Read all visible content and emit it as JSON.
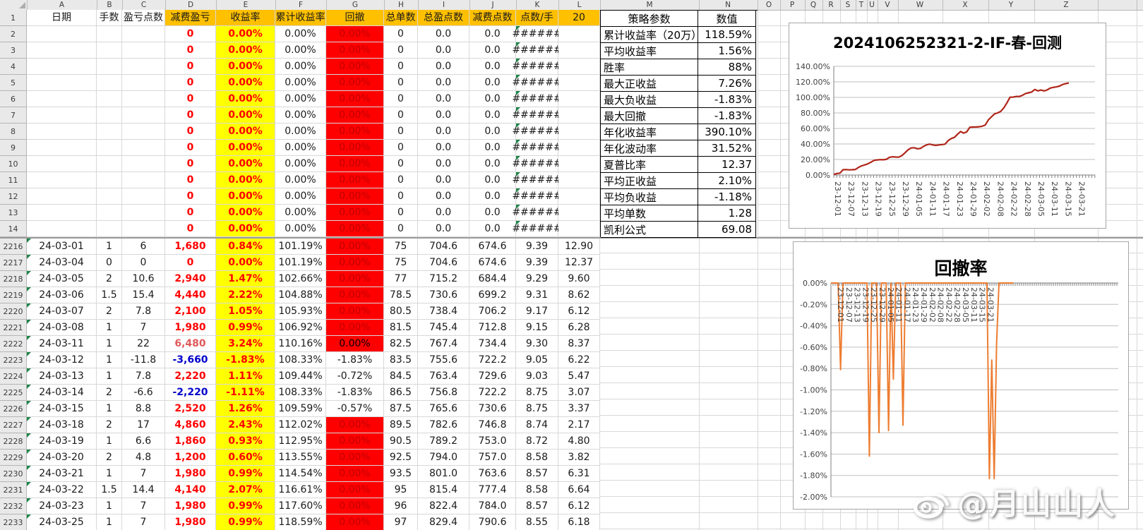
{
  "sheet": {
    "col_letters": [
      "A",
      "B",
      "C",
      "D",
      "E",
      "F",
      "G",
      "H",
      "I",
      "J",
      "K",
      "L",
      "M",
      "N",
      "O",
      "P",
      "Q",
      "R",
      "S",
      "T",
      "U",
      "V",
      "W",
      "X",
      "Y",
      "Z"
    ],
    "row_numbers_top": [
      1,
      2,
      3,
      4,
      5,
      6,
      7,
      8,
      9,
      10,
      11,
      12,
      13,
      14
    ],
    "row_numbers_bottom": [
      2216,
      2217,
      2218,
      2219,
      2220,
      2221,
      2222,
      2223,
      2224,
      2225,
      2226,
      2227,
      2228,
      2229,
      2230,
      2231,
      2232,
      2233
    ]
  },
  "table": {
    "header_row": {
      "date": "日期",
      "lots": "手数",
      "pts": "盈亏点数",
      "pnl": "减费盈亏",
      "ret": "收益率",
      "cum": "累计收益率",
      "dd": "回撤",
      "orders": "总单数",
      "winpts": "总盈点数",
      "feepts": "减费点数",
      "ppl": "点数/手",
      "c20": "20"
    },
    "top_row_template": {
      "pnl": "0",
      "ret": "0.00%",
      "cum": "0.00%",
      "dd": "0.00%",
      "orders": "0",
      "winpts": "0.0",
      "feepts": "0.0",
      "ppl": "######"
    },
    "bottom_rows": [
      {
        "row": 2216,
        "date": "24-03-01",
        "lots": "1",
        "pts": "6",
        "pnl": "1,680",
        "pnl_style": "red",
        "ret": "0.84%",
        "cum": "101.19%",
        "dd": "0.00%",
        "dd_style": "red",
        "orders": "75",
        "winpts": "704.6",
        "feepts": "674.6",
        "ppl": "9.39",
        "c20": "12.90"
      },
      {
        "row": 2217,
        "date": "24-03-04",
        "lots": "0",
        "pts": "0",
        "pnl": "0",
        "pnl_style": "red",
        "ret": "0.00%",
        "cum": "101.19%",
        "dd": "0.00%",
        "dd_style": "red",
        "orders": "75",
        "winpts": "704.6",
        "feepts": "674.6",
        "ppl": "9.39",
        "c20": "12.37"
      },
      {
        "row": 2218,
        "date": "24-03-05",
        "lots": "2",
        "pts": "10.6",
        "pnl": "2,940",
        "pnl_style": "red",
        "ret": "1.47%",
        "cum": "102.66%",
        "dd": "0.00%",
        "dd_style": "red",
        "orders": "77",
        "winpts": "715.2",
        "feepts": "684.4",
        "ppl": "9.29",
        "c20": "9.60"
      },
      {
        "row": 2219,
        "date": "24-03-06",
        "lots": "1.5",
        "pts": "15.4",
        "pnl": "4,440",
        "pnl_style": "red",
        "ret": "2.22%",
        "cum": "104.88%",
        "dd": "0.00%",
        "dd_style": "red",
        "orders": "78.5",
        "winpts": "730.6",
        "feepts": "699.2",
        "ppl": "9.31",
        "c20": "8.62"
      },
      {
        "row": 2220,
        "date": "24-03-07",
        "lots": "2",
        "pts": "7.8",
        "pnl": "2,100",
        "pnl_style": "red",
        "ret": "1.05%",
        "cum": "105.93%",
        "dd": "0.00%",
        "dd_style": "red",
        "orders": "80.5",
        "winpts": "738.4",
        "feepts": "706.2",
        "ppl": "9.17",
        "c20": "6.12"
      },
      {
        "row": 2221,
        "date": "24-03-08",
        "lots": "1",
        "pts": "7",
        "pnl": "1,980",
        "pnl_style": "red",
        "ret": "0.99%",
        "cum": "106.92%",
        "dd": "0.00%",
        "dd_style": "red",
        "orders": "81.5",
        "winpts": "745.4",
        "feepts": "712.8",
        "ppl": "9.15",
        "c20": "6.28"
      },
      {
        "row": 2222,
        "date": "24-03-11",
        "lots": "1",
        "pts": "22",
        "pnl": "6,480",
        "pnl_style": "redlight",
        "ret": "3.24%",
        "cum": "110.16%",
        "dd": "0.00%",
        "dd_style": "red-black",
        "orders": "82.5",
        "winpts": "767.4",
        "feepts": "734.4",
        "ppl": "9.30",
        "c20": "8.37"
      },
      {
        "row": 2223,
        "date": "24-03-12",
        "lots": "1",
        "pts": "-11.8",
        "pnl": "-3,660",
        "pnl_style": "blue",
        "ret": "-1.83%",
        "cum": "108.33%",
        "dd": "-1.83%",
        "dd_style": "white",
        "orders": "83.5",
        "winpts": "755.6",
        "feepts": "722.2",
        "ppl": "9.05",
        "c20": "6.22"
      },
      {
        "row": 2224,
        "date": "24-03-13",
        "lots": "1",
        "pts": "7.8",
        "pnl": "2,220",
        "pnl_style": "red",
        "ret": "1.11%",
        "cum": "109.44%",
        "dd": "-0.72%",
        "dd_style": "white",
        "orders": "84.5",
        "winpts": "763.4",
        "feepts": "729.6",
        "ppl": "9.03",
        "c20": "5.47"
      },
      {
        "row": 2225,
        "date": "24-03-14",
        "lots": "2",
        "pts": "-6.6",
        "pnl": "-2,220",
        "pnl_style": "blue",
        "ret": "-1.11%",
        "cum": "108.33%",
        "dd": "-1.83%",
        "dd_style": "white",
        "orders": "86.5",
        "winpts": "756.8",
        "feepts": "722.2",
        "ppl": "8.75",
        "c20": "3.07"
      },
      {
        "row": 2226,
        "date": "24-03-15",
        "lots": "1",
        "pts": "8.8",
        "pnl": "2,520",
        "pnl_style": "red",
        "ret": "1.26%",
        "cum": "109.59%",
        "dd": "-0.57%",
        "dd_style": "white",
        "orders": "87.5",
        "winpts": "765.6",
        "feepts": "730.6",
        "ppl": "8.75",
        "c20": "3.37"
      },
      {
        "row": 2227,
        "date": "24-03-18",
        "lots": "2",
        "pts": "17",
        "pnl": "4,860",
        "pnl_style": "red",
        "ret": "2.43%",
        "cum": "112.02%",
        "dd": "0.00%",
        "dd_style": "red",
        "orders": "89.5",
        "winpts": "782.6",
        "feepts": "746.8",
        "ppl": "8.74",
        "c20": "2.17"
      },
      {
        "row": 2228,
        "date": "24-03-19",
        "lots": "1",
        "pts": "6.6",
        "pnl": "1,860",
        "pnl_style": "red",
        "ret": "0.93%",
        "cum": "112.95%",
        "dd": "0.00%",
        "dd_style": "red",
        "orders": "90.5",
        "winpts": "789.2",
        "feepts": "753.0",
        "ppl": "8.72",
        "c20": "4.80"
      },
      {
        "row": 2229,
        "date": "24-03-20",
        "lots": "2",
        "pts": "4.8",
        "pnl": "1,200",
        "pnl_style": "red",
        "ret": "0.60%",
        "cum": "113.55%",
        "dd": "0.00%",
        "dd_style": "red",
        "orders": "92.5",
        "winpts": "794.0",
        "feepts": "757.0",
        "ppl": "8.58",
        "c20": "3.82"
      },
      {
        "row": 2230,
        "date": "24-03-21",
        "lots": "1",
        "pts": "7",
        "pnl": "1,980",
        "pnl_style": "red",
        "ret": "0.99%",
        "cum": "114.54%",
        "dd": "0.00%",
        "dd_style": "red",
        "orders": "93.5",
        "winpts": "801.0",
        "feepts": "763.6",
        "ppl": "8.57",
        "c20": "6.31"
      },
      {
        "row": 2231,
        "date": "24-03-22",
        "lots": "1.5",
        "pts": "14.4",
        "pnl": "4,140",
        "pnl_style": "red",
        "ret": "2.07%",
        "cum": "116.61%",
        "dd": "0.00%",
        "dd_style": "red",
        "orders": "95",
        "winpts": "815.4",
        "feepts": "777.4",
        "ppl": "8.58",
        "c20": "6.64"
      },
      {
        "row": 2232,
        "date": "24-03-23",
        "lots": "1",
        "pts": "7",
        "pnl": "1,980",
        "pnl_style": "red",
        "ret": "0.99%",
        "cum": "117.60%",
        "dd": "0.00%",
        "dd_style": "red",
        "orders": "96",
        "winpts": "822.4",
        "feepts": "784.0",
        "ppl": "8.57",
        "c20": "6.12"
      },
      {
        "row": 2233,
        "date": "24-03-25",
        "lots": "1",
        "pts": "7",
        "pnl": "1,980",
        "pnl_style": "red",
        "ret": "0.99%",
        "cum": "118.59%",
        "dd": "0.00%",
        "dd_style": "red",
        "orders": "97",
        "winpts": "829.4",
        "feepts": "790.6",
        "ppl": "8.55",
        "c20": "6.18"
      }
    ]
  },
  "params": {
    "title": "策略参数",
    "value_header": "数值",
    "rows": [
      [
        "累计收益率（20万）",
        "118.59%"
      ],
      [
        "平均收益率",
        "1.56%"
      ],
      [
        "胜率",
        "88%"
      ],
      [
        "最大正收益",
        "7.26%"
      ],
      [
        "最大负收益",
        "-1.83%"
      ],
      [
        "最大回撤",
        "-1.83%"
      ],
      [
        "年化收益率",
        "390.10%"
      ],
      [
        "年化波动率",
        "31.52%"
      ],
      [
        "夏普比率",
        "12.37"
      ],
      [
        "平均正收益",
        "2.10%"
      ],
      [
        "平均负收益",
        "-1.18%"
      ],
      [
        "平均单数",
        "1.28"
      ],
      [
        "凯利公式",
        "69.08"
      ]
    ]
  },
  "chart_data": [
    {
      "type": "line",
      "title": "2024106252321-2-IF-春-回测",
      "xlabel": "",
      "ylabel": "",
      "ylim": [
        0,
        140
      ],
      "y_tick_labels": [
        "0.00%",
        "20.00%",
        "40.00%",
        "60.00%",
        "80.00%",
        "100.00%",
        "120.00%",
        "140.00%"
      ],
      "x_tick_labels": [
        "23-12-01",
        "23-12-07",
        "23-12-13",
        "23-12-19",
        "23-12-25",
        "23-12-29",
        "24-01-05",
        "24-01-11",
        "24-01-17",
        "24-01-23",
        "24-01-29",
        "24-02-02",
        "24-02-08",
        "24-02-22",
        "24-02-28",
        "24-03-05",
        "24-03-11",
        "24-03-15",
        "24-03-21"
      ],
      "x": [
        "23-12-01",
        "23-12-04",
        "23-12-05",
        "23-12-06",
        "23-12-07",
        "23-12-08",
        "23-12-11",
        "23-12-12",
        "23-12-13",
        "23-12-14",
        "23-12-15",
        "23-12-18",
        "23-12-19",
        "23-12-20",
        "23-12-21",
        "23-12-22",
        "23-12-25",
        "23-12-26",
        "23-12-27",
        "23-12-28",
        "23-12-29",
        "24-01-02",
        "24-01-03",
        "24-01-04",
        "24-01-05",
        "24-01-08",
        "24-01-09",
        "24-01-10",
        "24-01-11",
        "24-01-12",
        "24-01-15",
        "24-01-16",
        "24-01-17",
        "24-01-18",
        "24-01-19",
        "24-01-22",
        "24-01-23",
        "24-01-24",
        "24-01-25",
        "24-01-26",
        "24-01-29",
        "24-01-30",
        "24-01-31",
        "24-02-01",
        "24-02-02",
        "24-02-05",
        "24-02-06",
        "24-02-07",
        "24-02-08",
        "24-02-18",
        "24-02-19",
        "24-02-20",
        "24-02-21",
        "24-02-22",
        "24-02-23",
        "24-02-26",
        "24-02-27",
        "24-02-28",
        "24-02-29",
        "24-03-01",
        "24-03-04",
        "24-03-05",
        "24-03-06",
        "24-03-07",
        "24-03-08",
        "24-03-11",
        "24-03-12",
        "24-03-13",
        "24-03-14",
        "24-03-15",
        "24-03-18",
        "24-03-19",
        "24-03-20",
        "24-03-21",
        "24-03-22",
        "24-03-23",
        "24-03-25"
      ],
      "series": [
        {
          "name": "累计收益率",
          "values": [
            0.5,
            2.0,
            2.5,
            6.8,
            7.0,
            6.6,
            6.8,
            7.2,
            9.8,
            11.8,
            13.0,
            14.5,
            16.5,
            18.8,
            19.5,
            19.8,
            19.6,
            20.2,
            22.8,
            23.5,
            23.2,
            23.0,
            25.0,
            28.5,
            32.5,
            34.8,
            35.2,
            33.8,
            34.2,
            36.8,
            38.8,
            39.8,
            38.8,
            38.2,
            38.8,
            39.2,
            39.8,
            44.5,
            47.0,
            48.5,
            52.5,
            56.0,
            54.0,
            55.5,
            61.5,
            61.8,
            61.8,
            62.2,
            62.8,
            64.5,
            71.0,
            75.0,
            78.8,
            80.0,
            82.0,
            86.5,
            93.0,
            100.3,
            100.4,
            101.19,
            101.19,
            102.66,
            104.88,
            105.93,
            106.92,
            110.16,
            108.33,
            109.44,
            108.33,
            109.59,
            112.02,
            112.95,
            113.55,
            114.54,
            116.61,
            117.6,
            118.59
          ]
        }
      ],
      "line_color": "#B02418",
      "grid": true,
      "legend": "none",
      "note": "values before 24-03-01 estimated from pixels"
    },
    {
      "type": "line",
      "title": "回撤率",
      "xlabel": "",
      "ylabel": "",
      "ylim": [
        -2,
        0
      ],
      "y_tick_labels": [
        "0.00%",
        "-0.20%",
        "-0.40%",
        "-0.60%",
        "-0.80%",
        "-1.00%",
        "-1.20%",
        "-1.40%",
        "-1.60%",
        "-1.80%",
        "-2.00%"
      ],
      "x_tick_labels": [
        "23-12-01",
        "23-12-07",
        "23-12-13",
        "23-12-19",
        "23-12-25",
        "23-12-29",
        "24-01-05",
        "24-01-11",
        "24-01-17",
        "24-01-23",
        "24-01-29",
        "24-02-02",
        "24-02-08",
        "24-02-22",
        "24-02-28",
        "24-03-05",
        "24-03-11",
        "24-03-15",
        "24-03-21"
      ],
      "series": [
        {
          "name": "回撤率",
          "values": [
            0,
            0,
            0,
            0,
            -0.81,
            0,
            0,
            0,
            0,
            0,
            0,
            0,
            0,
            0,
            0,
            0,
            -1.62,
            0,
            0,
            0,
            -1.4,
            0,
            0,
            0,
            -1.38,
            0,
            -0.9,
            0,
            0,
            0,
            -1.33,
            0,
            0,
            0,
            0,
            0,
            0,
            0,
            0,
            0,
            0,
            0,
            0,
            0,
            0,
            0,
            0,
            0,
            0,
            0,
            0,
            0,
            0,
            0,
            0,
            0,
            0,
            0,
            0,
            0,
            0,
            0,
            0,
            0,
            0,
            0,
            -1.83,
            -0.72,
            -1.83,
            -0.57,
            0,
            0,
            0,
            0,
            0,
            0,
            0
          ]
        }
      ],
      "line_color": "#ED7D31",
      "grid": true,
      "legend": "none",
      "note": "spike depths estimated from pixels; 24-03 values match table drawdown column"
    }
  ],
  "watermark": {
    "text": "@月山山人"
  }
}
